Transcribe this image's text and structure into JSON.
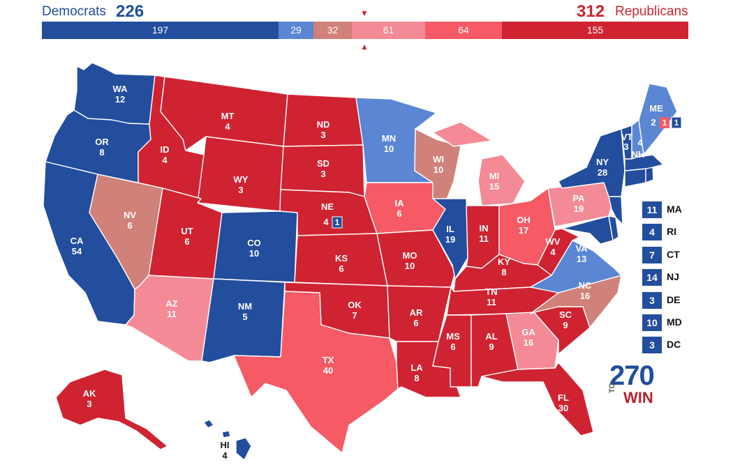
{
  "header": {
    "dem_name": "Democrats",
    "dem_total": "226",
    "rep_total": "312",
    "rep_name": "Republicans",
    "threshold_down": "▼",
    "threshold_up": "▲"
  },
  "colors": {
    "safe_dem": "#234d9d",
    "likely_dem": "#5a86d4",
    "tossup_tan": "#d0817a",
    "lean_rep": "#f48a95",
    "likely_rep": "#f55a65",
    "safe_rep": "#cf2331"
  },
  "bar": {
    "segments": [
      {
        "label": "197",
        "value": 197,
        "color": "#234d9d"
      },
      {
        "label": "29",
        "value": 29,
        "color": "#5a86d4"
      },
      {
        "label": "32",
        "value": 32,
        "color": "#d0817a"
      },
      {
        "label": "61",
        "value": 61,
        "color": "#f48a95"
      },
      {
        "label": "64",
        "value": 64,
        "color": "#f55a65"
      },
      {
        "label": "155",
        "value": 155,
        "color": "#cf2331"
      }
    ]
  },
  "states": {
    "WA": {
      "abbr": "WA",
      "ev": "12"
    },
    "OR": {
      "abbr": "OR",
      "ev": "8"
    },
    "CA": {
      "abbr": "CA",
      "ev": "54"
    },
    "NV": {
      "abbr": "NV",
      "ev": "6"
    },
    "ID": {
      "abbr": "ID",
      "ev": "4"
    },
    "MT": {
      "abbr": "MT",
      "ev": "4"
    },
    "WY": {
      "abbr": "WY",
      "ev": "3"
    },
    "UT": {
      "abbr": "UT",
      "ev": "6"
    },
    "AZ": {
      "abbr": "AZ",
      "ev": "11"
    },
    "CO": {
      "abbr": "CO",
      "ev": "10"
    },
    "NM": {
      "abbr": "NM",
      "ev": "5"
    },
    "ND": {
      "abbr": "ND",
      "ev": "3"
    },
    "SD": {
      "abbr": "SD",
      "ev": "3"
    },
    "NE": {
      "abbr": "NE",
      "ev": "4"
    },
    "KS": {
      "abbr": "KS",
      "ev": "6"
    },
    "OK": {
      "abbr": "OK",
      "ev": "7"
    },
    "TX": {
      "abbr": "TX",
      "ev": "40"
    },
    "MN": {
      "abbr": "MN",
      "ev": "10"
    },
    "IA": {
      "abbr": "IA",
      "ev": "6"
    },
    "MO": {
      "abbr": "MO",
      "ev": "10"
    },
    "AR": {
      "abbr": "AR",
      "ev": "6"
    },
    "LA": {
      "abbr": "LA",
      "ev": "8"
    },
    "WI": {
      "abbr": "WI",
      "ev": "10"
    },
    "IL": {
      "abbr": "IL",
      "ev": "19"
    },
    "MI": {
      "abbr": "MI",
      "ev": "15"
    },
    "IN": {
      "abbr": "IN",
      "ev": "11"
    },
    "OH": {
      "abbr": "OH",
      "ev": "17"
    },
    "KY": {
      "abbr": "KY",
      "ev": "8"
    },
    "TN": {
      "abbr": "TN",
      "ev": "11"
    },
    "MS": {
      "abbr": "MS",
      "ev": "6"
    },
    "AL": {
      "abbr": "AL",
      "ev": "9"
    },
    "GA": {
      "abbr": "GA",
      "ev": "16"
    },
    "FL": {
      "abbr": "FL",
      "ev": "30"
    },
    "SC": {
      "abbr": "SC",
      "ev": "9"
    },
    "NC": {
      "abbr": "NC",
      "ev": "16"
    },
    "VA": {
      "abbr": "VA",
      "ev": "13"
    },
    "WV": {
      "abbr": "WV",
      "ev": "4"
    },
    "PA": {
      "abbr": "PA",
      "ev": "19"
    },
    "NY": {
      "abbr": "NY",
      "ev": "28"
    },
    "VT": {
      "abbr": "VT",
      "ev": "3"
    },
    "NH": {
      "abbr": "NH",
      "ev": "4"
    },
    "ME": {
      "abbr": "ME",
      "ev": "2"
    },
    "AK": {
      "abbr": "AK",
      "ev": "3"
    },
    "HI": {
      "abbr": "HI",
      "ev": "4"
    }
  },
  "districts": {
    "me1": "1",
    "me2": "1",
    "ne2": "1"
  },
  "small_states": [
    {
      "ev": "11",
      "abbr": "MA"
    },
    {
      "ev": "4",
      "abbr": "RI"
    },
    {
      "ev": "7",
      "abbr": "CT"
    },
    {
      "ev": "14",
      "abbr": "NJ"
    },
    {
      "ev": "3",
      "abbr": "DE"
    },
    {
      "ev": "10",
      "abbr": "MD"
    },
    {
      "ev": "3",
      "abbr": "DC"
    }
  ],
  "logo": {
    "number": "270",
    "to": "TO",
    "win": "WIN"
  }
}
